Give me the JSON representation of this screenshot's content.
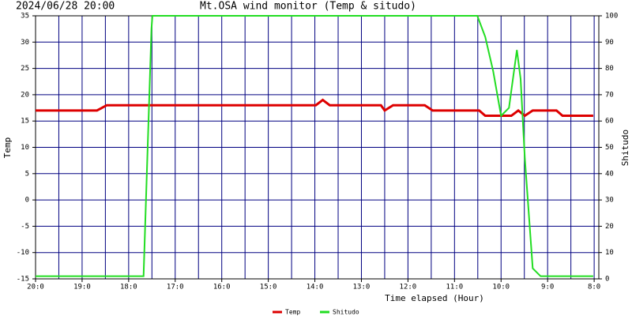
{
  "chart_data": {
    "type": "line",
    "title": "Mt.OSA wind monitor (Temp & situdo)",
    "subtitle": "2024/06/28 20:00",
    "ylabel": "Temp",
    "y2label": "Shitudo",
    "xlabel": "Time elapsed (Hour)",
    "xlim": [
      20,
      7.9
    ],
    "xticks": [
      {
        "value": 20,
        "label": "20:0"
      },
      {
        "value": 19,
        "label": "19:0"
      },
      {
        "value": 18,
        "label": "18:0"
      },
      {
        "value": 17,
        "label": "17:0"
      },
      {
        "value": 16,
        "label": "16:0"
      },
      {
        "value": 15,
        "label": "15:0"
      },
      {
        "value": 14,
        "label": "14:0"
      },
      {
        "value": 13,
        "label": "13:0"
      },
      {
        "value": 12,
        "label": "12:0"
      },
      {
        "value": 11,
        "label": "11:0"
      },
      {
        "value": 10,
        "label": "10:0"
      },
      {
        "value": 9,
        "label": "9:0"
      },
      {
        "value": 8,
        "label": "8:0"
      }
    ],
    "xminor_ticks": [
      19.5,
      18.5,
      17.5,
      16.5,
      15.5,
      14.5,
      13.5,
      12.5,
      11.5,
      10.5,
      9.5,
      8.5
    ],
    "ylim": [
      -15,
      35
    ],
    "yticks": [
      -15,
      -10,
      -5,
      0,
      5,
      10,
      15,
      20,
      25,
      30,
      35
    ],
    "y2lim": [
      0,
      100
    ],
    "y2ticks": [
      0,
      10,
      20,
      30,
      40,
      50,
      60,
      70,
      80,
      90,
      100
    ],
    "grid": true,
    "grid_color": "#000080",
    "legend": "bottom",
    "series": [
      {
        "name": "Temp",
        "color": "#dd0000",
        "x": [
          20,
          18.68,
          18.47,
          13.98,
          13.83,
          13.68,
          12.58,
          12.5,
          12.32,
          11.64,
          11.47,
          10.47,
          10.34,
          9.78,
          9.63,
          9.49,
          9.32,
          8.81,
          8.68,
          8.02
        ],
        "values": [
          17,
          17,
          18,
          18,
          19,
          18,
          18,
          17,
          18,
          18,
          17,
          17,
          16,
          16,
          17,
          16,
          17,
          17,
          16,
          16
        ]
      },
      {
        "name": "Shitudo",
        "color": "#22dd22",
        "axis": "y2",
        "x": [
          20,
          17.68,
          17.51,
          17.49,
          10.51,
          10.34,
          10.17,
          10.0,
          9.83,
          9.66,
          9.58,
          9.49,
          9.32,
          9.15,
          8.02
        ],
        "values": [
          1,
          1,
          95,
          100,
          100,
          92,
          79,
          62,
          65,
          87,
          76,
          46,
          4,
          1,
          1
        ]
      }
    ]
  }
}
